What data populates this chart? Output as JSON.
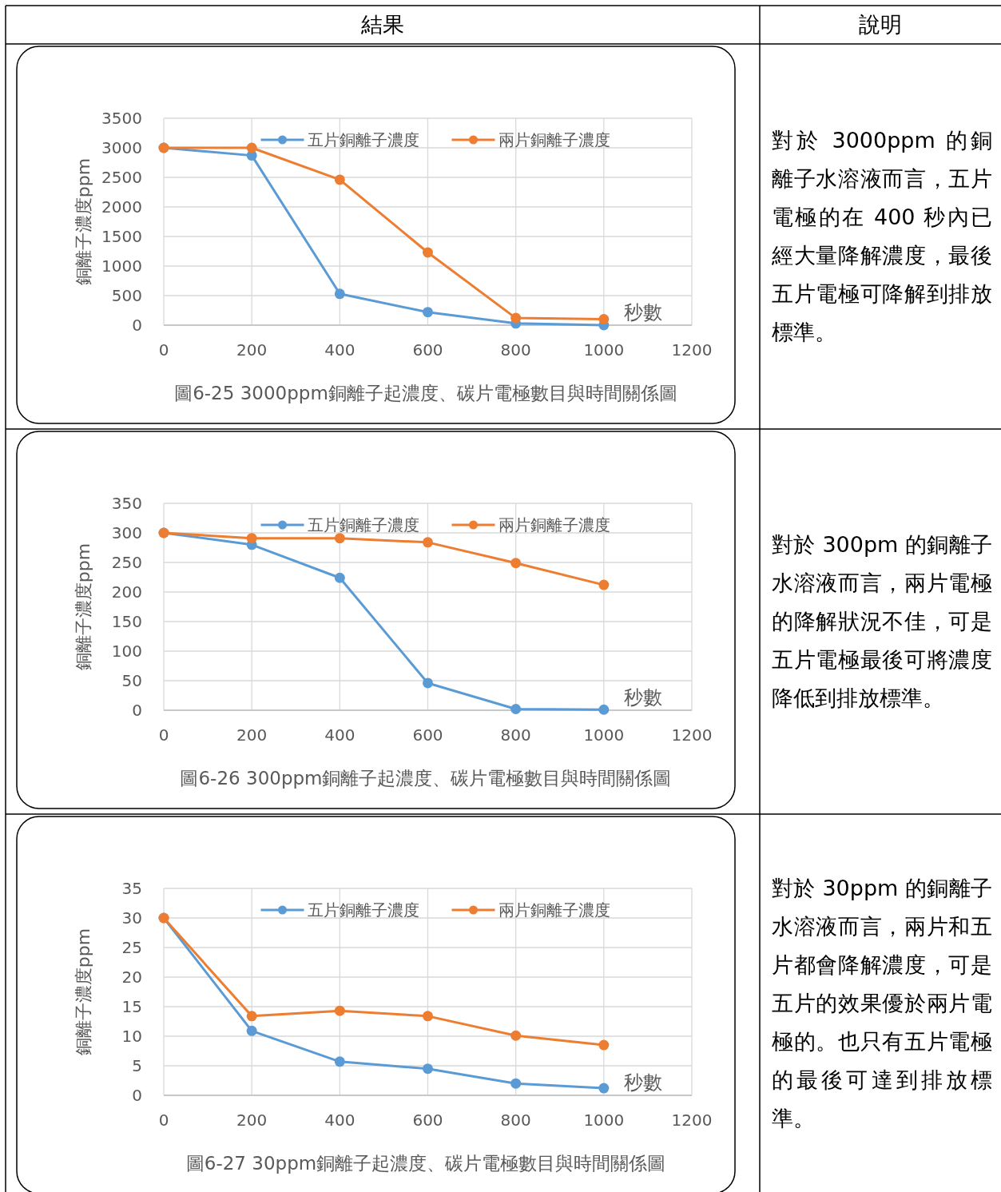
{
  "chart_data": [
    {
      "type": "other",
      "annotations": [
        "結果",
        "說明"
      ]
    },
    {
      "type": "line",
      "title": "圖6-25  3000ppm銅離子起濃度、碳片電極數目與時間關係圖",
      "xlabel": "秒數",
      "ylabel": "銅離子濃度ppm",
      "x": [
        0,
        200,
        400,
        600,
        800,
        1000
      ],
      "xlim": [
        0,
        1200
      ],
      "xticks": [
        0,
        200,
        400,
        600,
        800,
        1000,
        1200
      ],
      "ylim": [
        0,
        3500
      ],
      "yticks": [
        0,
        500,
        1000,
        1500,
        2000,
        2500,
        3000,
        3500
      ],
      "grid": true,
      "legend": "top",
      "marker": "circle",
      "series": [
        {
          "name": "五片銅離子濃度",
          "color": "#5b9bd5",
          "values": [
            3000,
            2870,
            530,
            220,
            30,
            0
          ]
        },
        {
          "name": "兩片銅離子濃度",
          "color": "#ed7d31",
          "values": [
            3000,
            3000,
            2460,
            1230,
            120,
            100
          ]
        }
      ]
    },
    {
      "type": "other",
      "annotations": [
        "對於 3000ppm 的銅離子水溶液而言，五片電極的在 400 秒內已經大量降解濃度，最後五片電極可降解到排放標準。"
      ]
    },
    {
      "type": "line",
      "title": "圖6-26  300ppm銅離子起濃度、碳片電極數目與時間關係圖",
      "xlabel": "秒數",
      "ylabel": "銅離子濃度ppm",
      "x": [
        0,
        200,
        400,
        600,
        800,
        1000
      ],
      "xlim": [
        0,
        1200
      ],
      "xticks": [
        0,
        200,
        400,
        600,
        800,
        1000,
        1200
      ],
      "ylim": [
        0,
        350
      ],
      "yticks": [
        0,
        50,
        100,
        150,
        200,
        250,
        300,
        350
      ],
      "grid": true,
      "legend": "top",
      "marker": "circle",
      "series": [
        {
          "name": "五片銅離子濃度",
          "color": "#5b9bd5",
          "values": [
            300,
            280,
            224,
            46,
            2,
            1
          ]
        },
        {
          "name": "兩片銅離子濃度",
          "color": "#ed7d31",
          "values": [
            300,
            291,
            291,
            284,
            249,
            212
          ]
        }
      ]
    },
    {
      "type": "other",
      "annotations": [
        "對於 300pm 的銅離子水溶液而言，兩片電極的降解狀況不佳，可是五片電極最後可將濃度降低到排放標準。"
      ]
    },
    {
      "type": "line",
      "title": "圖6-27  30ppm銅離子起濃度、碳片電極數目與時間關係圖",
      "xlabel": "秒數",
      "ylabel": "銅離子濃度ppm",
      "x": [
        0,
        200,
        400,
        600,
        800,
        1000
      ],
      "xlim": [
        0,
        1200
      ],
      "xticks": [
        0,
        200,
        400,
        600,
        800,
        1000,
        1200
      ],
      "ylim": [
        0,
        35
      ],
      "yticks": [
        0,
        5,
        10,
        15,
        20,
        25,
        30,
        35
      ],
      "grid": true,
      "legend": "top",
      "marker": "circle",
      "series": [
        {
          "name": "五片銅離子濃度",
          "color": "#5b9bd5",
          "values": [
            30,
            10.9,
            5.7,
            4.5,
            2.0,
            1.2
          ]
        },
        {
          "name": "兩片銅離子濃度",
          "color": "#ed7d31",
          "values": [
            30,
            13.4,
            14.3,
            13.4,
            10.1,
            8.5
          ]
        }
      ]
    },
    {
      "type": "other",
      "annotations": [
        "對於 30ppm 的銅離子水溶液而言，兩片和五片都會降解濃度，可是五片的效果優於兩片電極的。也只有五片電極的最後可達到排放標準。"
      ]
    }
  ]
}
